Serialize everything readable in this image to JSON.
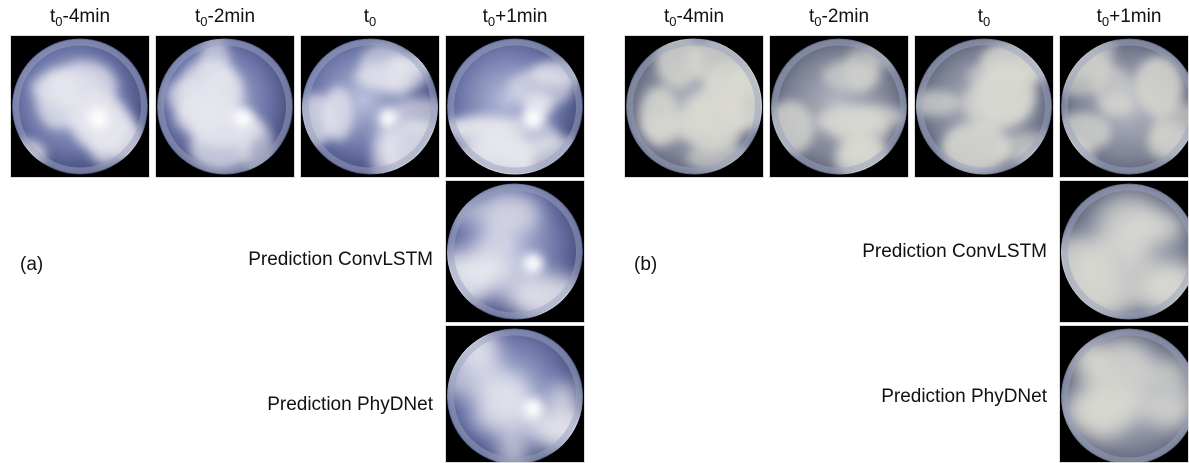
{
  "panels": [
    {
      "label": "(a)",
      "columns": [
        {
          "base": "t",
          "sub": "0",
          "suffix": "-4min"
        },
        {
          "base": "t",
          "sub": "0",
          "suffix": "-2min"
        },
        {
          "base": "t",
          "sub": "0"
        },
        {
          "base": "t",
          "sub": "0",
          "suffix": "+1min"
        }
      ],
      "rows": [
        "Prediction ConvLSTM",
        "Prediction PhyDNet"
      ]
    },
    {
      "label": "(b)",
      "columns": [
        {
          "base": "t",
          "sub": "0",
          "suffix": "-4min"
        },
        {
          "base": "t",
          "sub": "0",
          "suffix": "-2min"
        },
        {
          "base": "t",
          "sub": "0"
        },
        {
          "base": "t",
          "sub": "0",
          "suffix": "+1min"
        }
      ],
      "rows": [
        "Prediction ConvLSTM",
        "Prediction PhyDNet"
      ]
    }
  ]
}
